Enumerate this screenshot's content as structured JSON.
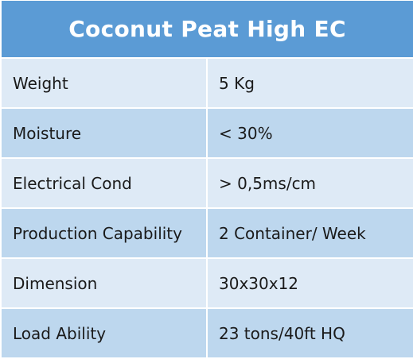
{
  "table": {
    "title": "Coconut Peat High EC",
    "rows": [
      {
        "label": "Weight",
        "value": "5 Kg"
      },
      {
        "label": "Moisture",
        "value": "< 30%"
      },
      {
        "label": "Electrical Cond",
        "value": "> 0,5ms/cm"
      },
      {
        "label": "Production Capability",
        "value": "2 Container/ Week"
      },
      {
        "label": "Dimension",
        "value": "30x30x12"
      },
      {
        "label": "Load Ability",
        "value": "23 tons/40ft HQ"
      }
    ]
  },
  "colors": {
    "header_bg": "#5b9bd5",
    "row_light": "#deeaf6",
    "row_dark": "#bdd7ee"
  }
}
